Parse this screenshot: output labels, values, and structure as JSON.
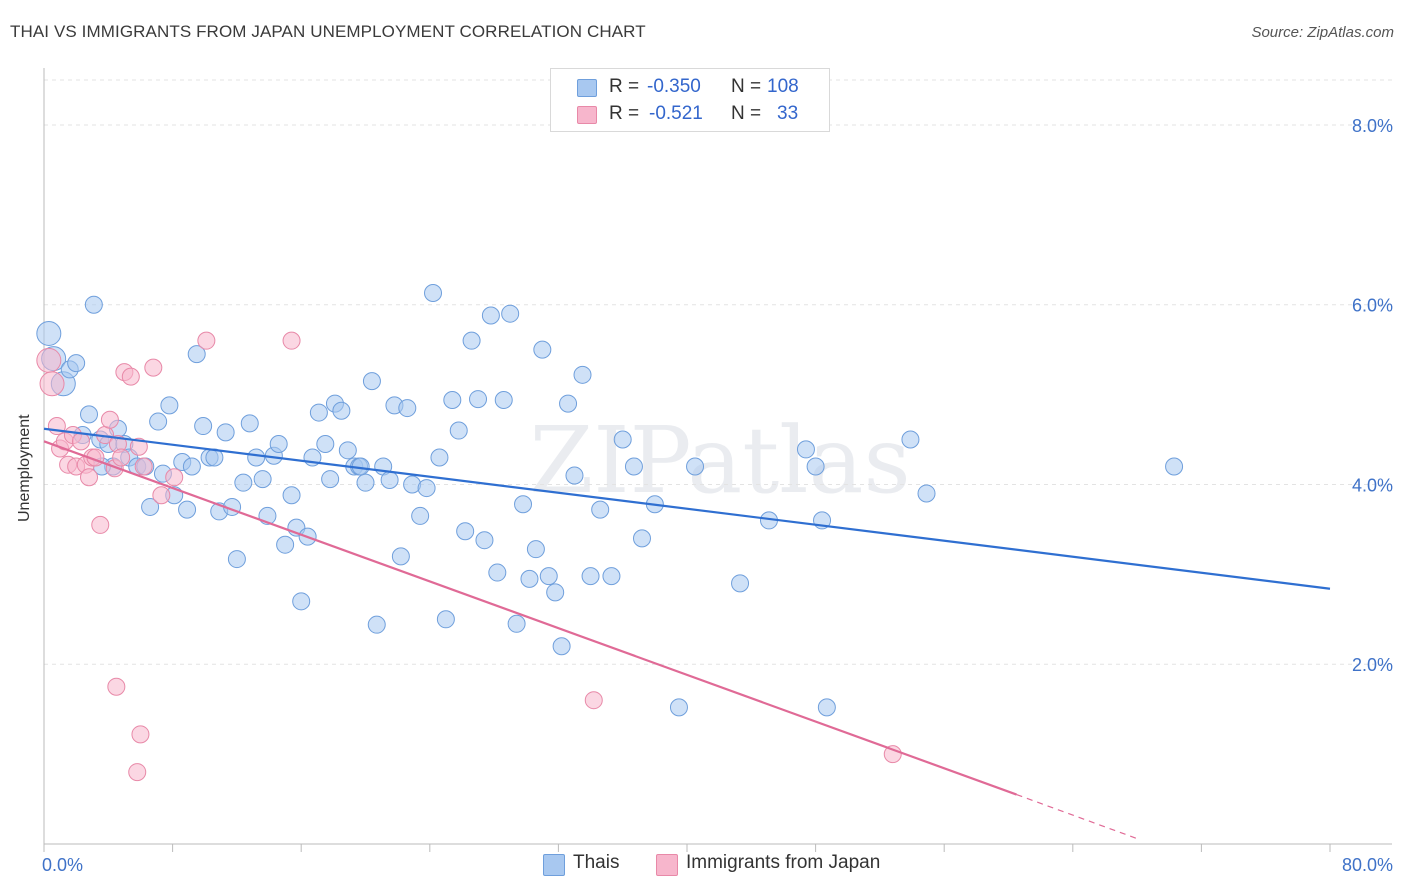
{
  "title": "THAI VS IMMIGRANTS FROM JAPAN UNEMPLOYMENT CORRELATION CHART",
  "source": "Source: ZipAtlas.com",
  "watermark": "ZIPatlas",
  "stats": [
    {
      "r_label": "R =",
      "r_value": "-0.350",
      "n_label": "N =",
      "n_value": "108",
      "color": "#a8c8f0"
    },
    {
      "r_label": "R =",
      "r_value": "-0.521",
      "n_label": "N =",
      "n_value": "33",
      "color": "#f7b6cc"
    }
  ],
  "legend": [
    {
      "label": "Thais",
      "color": "#a8c8f0"
    },
    {
      "label": "Immigrants from Japan",
      "color": "#f7b6cc"
    }
  ],
  "chart_data": {
    "type": "scatter",
    "ylabel": "Unemployment",
    "x_range": [
      0,
      80
    ],
    "y_range": [
      0,
      8.5
    ],
    "x_tick_labels": [
      {
        "v": 0,
        "label": "0.0%"
      },
      {
        "v": 80,
        "label": "80.0%"
      }
    ],
    "y_tick_labels": [
      {
        "v": 2,
        "label": "2.0%"
      },
      {
        "v": 4,
        "label": "4.0%"
      },
      {
        "v": 6,
        "label": "6.0%"
      },
      {
        "v": 8,
        "label": "8.0%"
      }
    ],
    "grid": true,
    "series": [
      {
        "name": "Thais",
        "color": "#a8c8f0",
        "stroke": "#6f9fdc",
        "trend": {
          "x": [
            0,
            80
          ],
          "y": [
            4.62,
            2.84
          ],
          "color": "#2f6fd1"
        },
        "points": [
          [
            0.3,
            5.68
          ],
          [
            0.6,
            5.4
          ],
          [
            1.2,
            5.12
          ],
          [
            1.6,
            5.28
          ],
          [
            2.0,
            5.35
          ],
          [
            2.4,
            4.55
          ],
          [
            2.8,
            4.78
          ],
          [
            3.1,
            6.0
          ],
          [
            3.5,
            4.5
          ],
          [
            4.0,
            4.45
          ],
          [
            4.3,
            4.2
          ],
          [
            4.6,
            4.62
          ],
          [
            5.0,
            4.45
          ],
          [
            5.3,
            4.3
          ],
          [
            5.8,
            4.2
          ],
          [
            6.3,
            4.2
          ],
          [
            6.6,
            3.75
          ],
          [
            7.1,
            4.7
          ],
          [
            7.4,
            4.12
          ],
          [
            7.8,
            4.88
          ],
          [
            8.1,
            3.88
          ],
          [
            8.6,
            4.25
          ],
          [
            8.9,
            3.72
          ],
          [
            9.2,
            4.2
          ],
          [
            9.5,
            5.45
          ],
          [
            9.9,
            4.65
          ],
          [
            10.3,
            4.3
          ],
          [
            10.6,
            4.3
          ],
          [
            10.9,
            3.7
          ],
          [
            11.3,
            4.58
          ],
          [
            11.7,
            3.75
          ],
          [
            12.0,
            3.17
          ],
          [
            12.4,
            4.02
          ],
          [
            12.8,
            4.68
          ],
          [
            13.2,
            4.3
          ],
          [
            13.6,
            4.06
          ],
          [
            13.9,
            3.65
          ],
          [
            14.3,
            4.32
          ],
          [
            14.6,
            4.45
          ],
          [
            15.0,
            3.33
          ],
          [
            15.4,
            3.88
          ],
          [
            15.7,
            3.52
          ],
          [
            16.0,
            2.7
          ],
          [
            16.4,
            3.42
          ],
          [
            16.7,
            4.3
          ],
          [
            17.1,
            4.8
          ],
          [
            17.5,
            4.45
          ],
          [
            17.8,
            4.06
          ],
          [
            18.1,
            4.9
          ],
          [
            18.5,
            4.82
          ],
          [
            18.9,
            4.38
          ],
          [
            19.3,
            4.2
          ],
          [
            19.6,
            4.2
          ],
          [
            20.0,
            4.02
          ],
          [
            20.4,
            5.15
          ],
          [
            20.7,
            2.44
          ],
          [
            21.1,
            4.2
          ],
          [
            21.5,
            4.05
          ],
          [
            21.8,
            4.88
          ],
          [
            22.2,
            3.2
          ],
          [
            22.6,
            4.85
          ],
          [
            22.9,
            4.0
          ],
          [
            23.4,
            3.65
          ],
          [
            23.8,
            3.96
          ],
          [
            24.2,
            6.13
          ],
          [
            24.6,
            4.3
          ],
          [
            25.0,
            2.5
          ],
          [
            25.4,
            4.94
          ],
          [
            25.8,
            4.6
          ],
          [
            26.2,
            3.48
          ],
          [
            26.6,
            5.6
          ],
          [
            27.0,
            4.95
          ],
          [
            27.4,
            3.38
          ],
          [
            27.8,
            5.88
          ],
          [
            28.2,
            3.02
          ],
          [
            28.6,
            4.94
          ],
          [
            29.0,
            5.9
          ],
          [
            29.4,
            2.45
          ],
          [
            29.8,
            3.78
          ],
          [
            30.2,
            2.95
          ],
          [
            30.6,
            3.28
          ],
          [
            31.0,
            5.5
          ],
          [
            31.4,
            2.98
          ],
          [
            31.8,
            2.8
          ],
          [
            32.2,
            2.2
          ],
          [
            32.6,
            4.9
          ],
          [
            33.0,
            4.1
          ],
          [
            33.5,
            5.22
          ],
          [
            34.0,
            2.98
          ],
          [
            34.6,
            3.72
          ],
          [
            35.3,
            2.98
          ],
          [
            36.0,
            4.5
          ],
          [
            37.2,
            3.4
          ],
          [
            38.0,
            3.78
          ],
          [
            39.5,
            1.52
          ],
          [
            40.5,
            4.2
          ],
          [
            43.3,
            2.9
          ],
          [
            45.1,
            3.6
          ],
          [
            47.4,
            4.39
          ],
          [
            48.0,
            4.2
          ],
          [
            48.4,
            3.6
          ],
          [
            48.7,
            1.52
          ],
          [
            53.9,
            4.5
          ],
          [
            54.9,
            3.9
          ],
          [
            70.3,
            4.2
          ],
          [
            36.7,
            4.2
          ],
          [
            19.7,
            4.2
          ],
          [
            3.6,
            4.2
          ]
        ]
      },
      {
        "name": "Immigrants from Japan",
        "color": "#f7b6cc",
        "stroke": "#e889a8",
        "trend": {
          "x": [
            0,
            60.5
          ],
          "y": [
            4.48,
            0.55
          ],
          "dash_to": {
            "x": 68,
            "y": 0.06
          },
          "color": "#e06a96"
        },
        "points": [
          [
            0.3,
            5.38
          ],
          [
            0.5,
            5.12
          ],
          [
            0.8,
            4.65
          ],
          [
            1.0,
            4.4
          ],
          [
            1.3,
            4.48
          ],
          [
            1.5,
            4.22
          ],
          [
            1.8,
            4.55
          ],
          [
            2.0,
            4.2
          ],
          [
            2.3,
            4.48
          ],
          [
            2.6,
            4.22
          ],
          [
            2.8,
            4.08
          ],
          [
            3.0,
            4.3
          ],
          [
            3.2,
            4.3
          ],
          [
            3.5,
            3.55
          ],
          [
            3.8,
            4.55
          ],
          [
            4.1,
            4.72
          ],
          [
            4.4,
            4.18
          ],
          [
            4.6,
            4.45
          ],
          [
            4.8,
            4.3
          ],
          [
            5.0,
            5.25
          ],
          [
            5.4,
            5.2
          ],
          [
            5.9,
            4.42
          ],
          [
            6.2,
            4.2
          ],
          [
            6.8,
            5.3
          ],
          [
            7.3,
            3.88
          ],
          [
            8.1,
            4.08
          ],
          [
            10.1,
            5.6
          ],
          [
            15.4,
            5.6
          ],
          [
            4.5,
            1.75
          ],
          [
            6.0,
            1.22
          ],
          [
            5.8,
            0.8
          ],
          [
            34.2,
            1.6
          ],
          [
            52.8,
            1.0
          ]
        ]
      }
    ]
  }
}
